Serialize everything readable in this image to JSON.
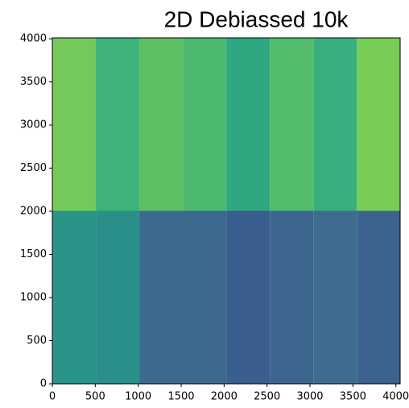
{
  "chart_data": {
    "type": "image",
    "title": "2D Debiassed 10k",
    "xlim": [
      0,
      4050
    ],
    "ylim": [
      0,
      4010
    ],
    "xticks": [
      0,
      500,
      1000,
      1500,
      2000,
      2500,
      3000,
      3500,
      4000
    ],
    "yticks": [
      0,
      500,
      1000,
      1500,
      2000,
      2500,
      3000,
      3500,
      4000
    ],
    "regions": [
      {
        "x": [
          0,
          507
        ],
        "y": [
          2005,
          4010
        ],
        "color": "#74c95a"
      },
      {
        "x": [
          507,
          1013
        ],
        "y": [
          2005,
          4010
        ],
        "color": "#3db27b"
      },
      {
        "x": [
          1013,
          1520
        ],
        "y": [
          2005,
          4010
        ],
        "color": "#5cbf63"
      },
      {
        "x": [
          1520,
          2026
        ],
        "y": [
          2005,
          4010
        ],
        "color": "#4cb96f"
      },
      {
        "x": [
          2026,
          2533
        ],
        "y": [
          2005,
          4010
        ],
        "color": "#2fa882"
      },
      {
        "x": [
          2533,
          3040
        ],
        "y": [
          2005,
          4010
        ],
        "color": "#52bc6b"
      },
      {
        "x": [
          3040,
          3546
        ],
        "y": [
          2005,
          4010
        ],
        "color": "#3aaf7e"
      },
      {
        "x": [
          3546,
          4050
        ],
        "y": [
          2005,
          4010
        ],
        "color": "#79cd56"
      },
      {
        "x": [
          0,
          507
        ],
        "y": [
          0,
          2005
        ],
        "color": "#2a9488"
      },
      {
        "x": [
          507,
          1013
        ],
        "y": [
          0,
          2005
        ],
        "color": "#2b8f89"
      },
      {
        "x": [
          1013,
          2026
        ],
        "y": [
          0,
          2005
        ],
        "color": "#3b6a8e"
      },
      {
        "x": [
          2026,
          2533
        ],
        "y": [
          0,
          2005
        ],
        "color": "#3a5e8e"
      },
      {
        "x": [
          2533,
          3040
        ],
        "y": [
          0,
          2005
        ],
        "color": "#3c668e"
      },
      {
        "x": [
          3040,
          3546
        ],
        "y": [
          0,
          2005
        ],
        "color": "#3d6c8e"
      },
      {
        "x": [
          3546,
          4050
        ],
        "y": [
          0,
          2005
        ],
        "color": "#3c638e"
      }
    ]
  }
}
